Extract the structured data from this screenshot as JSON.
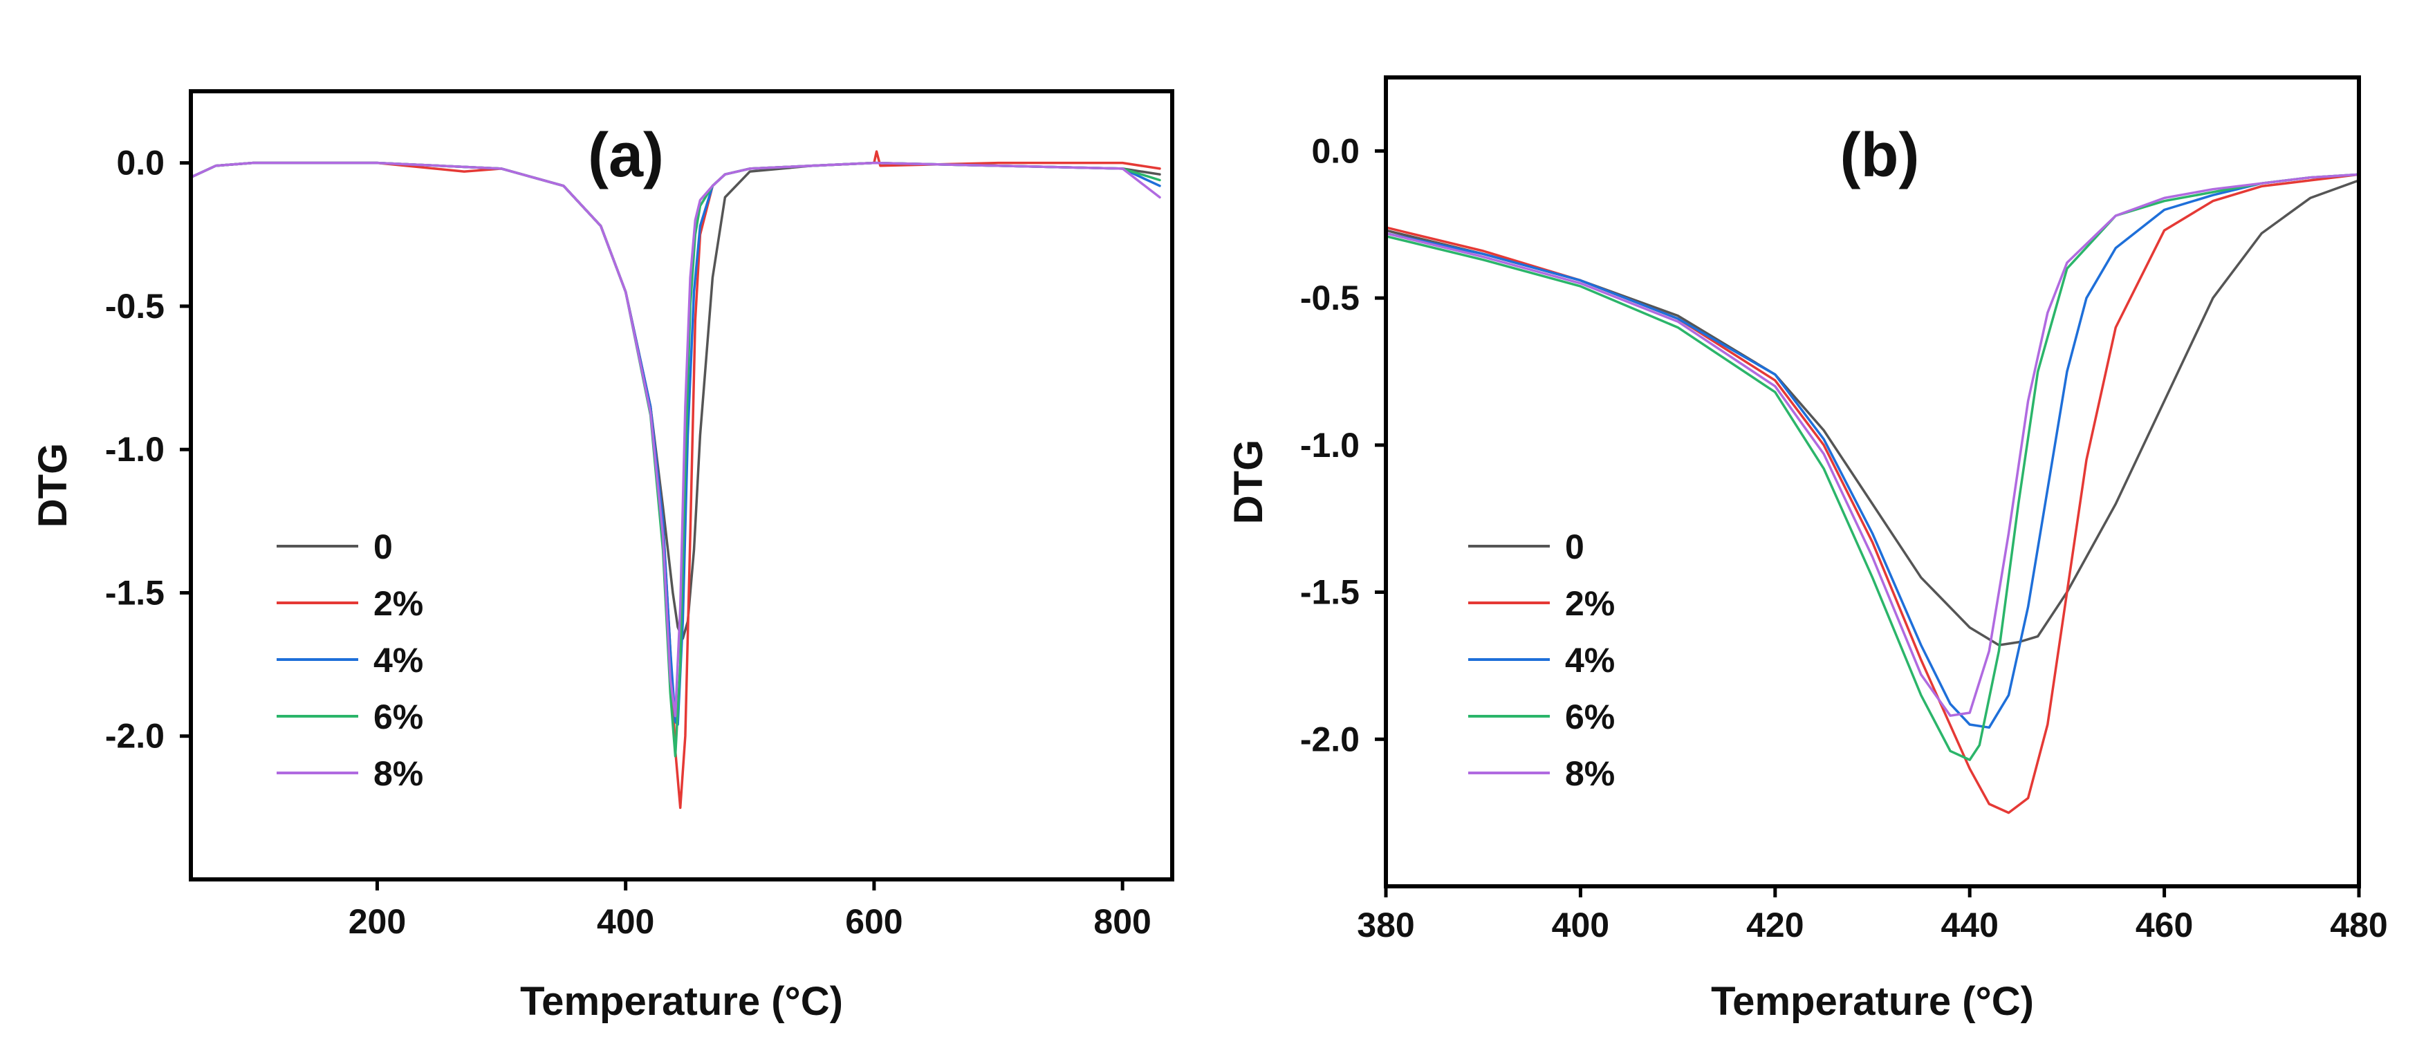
{
  "colors": {
    "s0": "#555555",
    "s2": "#e53935",
    "s4": "#1e6fd9",
    "s6": "#2bb56a",
    "s8": "#b06ae0"
  },
  "chart_data": [
    {
      "type": "line",
      "panel": "(a)",
      "xlabel": "Temperature (°C)",
      "ylabel": "DTG",
      "xlim": [
        50,
        840
      ],
      "ylim": [
        -2.5,
        0.25
      ],
      "xticks": [
        200,
        400,
        600,
        800
      ],
      "xtick_labels": [
        "200",
        "400",
        "600",
        "800"
      ],
      "yticks": [
        0.0,
        -0.5,
        -1.0,
        -1.5,
        -2.0
      ],
      "ytick_labels": [
        "0.0",
        "-0.5",
        "-1.0",
        "-1.5",
        "-2.0"
      ],
      "legend_position": "bottom-left",
      "series": [
        {
          "name": "0",
          "color_key": "s0",
          "x": [
            50,
            70,
            100,
            200,
            300,
            350,
            380,
            400,
            420,
            430,
            438,
            442,
            446,
            450,
            455,
            460,
            470,
            480,
            500,
            550,
            600,
            700,
            800,
            830
          ],
          "y": [
            -0.05,
            -0.01,
            0.0,
            0.0,
            -0.02,
            -0.08,
            -0.22,
            -0.45,
            -0.85,
            -1.2,
            -1.5,
            -1.62,
            -1.66,
            -1.6,
            -1.35,
            -0.95,
            -0.4,
            -0.12,
            -0.03,
            -0.01,
            0.0,
            -0.01,
            -0.02,
            -0.04
          ]
        },
        {
          "name": "2%",
          "color_key": "s2",
          "x": [
            50,
            70,
            100,
            200,
            270,
            300,
            350,
            380,
            400,
            420,
            430,
            436,
            440,
            444,
            448,
            452,
            456,
            460,
            470,
            480,
            500,
            550,
            600,
            602,
            605,
            700,
            800,
            830
          ],
          "y": [
            -0.05,
            -0.01,
            0.0,
            0.0,
            -0.03,
            -0.02,
            -0.08,
            -0.22,
            -0.45,
            -0.85,
            -1.25,
            -1.7,
            -2.05,
            -2.25,
            -2.0,
            -1.3,
            -0.55,
            -0.25,
            -0.08,
            -0.04,
            -0.02,
            -0.01,
            0.0,
            0.04,
            -0.01,
            0.0,
            0.0,
            -0.02
          ]
        },
        {
          "name": "4%",
          "color_key": "s4",
          "x": [
            50,
            70,
            100,
            200,
            300,
            350,
            380,
            400,
            420,
            430,
            436,
            440,
            442,
            446,
            450,
            455,
            460,
            470,
            480,
            500,
            600,
            700,
            800,
            830
          ],
          "y": [
            -0.05,
            -0.01,
            0.0,
            0.0,
            -0.02,
            -0.08,
            -0.22,
            -0.45,
            -0.85,
            -1.25,
            -1.7,
            -1.95,
            -1.96,
            -1.6,
            -0.95,
            -0.45,
            -0.22,
            -0.08,
            -0.04,
            -0.02,
            0.0,
            -0.01,
            -0.02,
            -0.08
          ]
        },
        {
          "name": "6%",
          "color_key": "s6",
          "x": [
            50,
            70,
            100,
            200,
            300,
            350,
            380,
            400,
            420,
            430,
            436,
            440,
            444,
            448,
            452,
            456,
            460,
            470,
            480,
            500,
            600,
            700,
            800,
            830
          ],
          "y": [
            -0.05,
            -0.01,
            0.0,
            0.0,
            -0.02,
            -0.08,
            -0.22,
            -0.45,
            -0.88,
            -1.35,
            -1.85,
            -2.07,
            -1.75,
            -1.05,
            -0.5,
            -0.25,
            -0.15,
            -0.08,
            -0.04,
            -0.02,
            0.0,
            -0.01,
            -0.02,
            -0.06
          ]
        },
        {
          "name": "8%",
          "color_key": "s8",
          "x": [
            50,
            70,
            100,
            200,
            300,
            350,
            380,
            400,
            420,
            430,
            436,
            440,
            444,
            448,
            452,
            456,
            460,
            470,
            480,
            500,
            600,
            700,
            800,
            830
          ],
          "y": [
            -0.05,
            -0.01,
            0.0,
            0.0,
            -0.02,
            -0.08,
            -0.22,
            -0.45,
            -0.87,
            -1.3,
            -1.8,
            -1.93,
            -1.55,
            -0.85,
            -0.4,
            -0.2,
            -0.13,
            -0.08,
            -0.04,
            -0.02,
            0.0,
            -0.01,
            -0.02,
            -0.12
          ]
        }
      ]
    },
    {
      "type": "line",
      "panel": "(b)",
      "xlabel": "Temperature (°C)",
      "ylabel": "DTG",
      "xlim": [
        380,
        480
      ],
      "ylim": [
        -2.5,
        0.25
      ],
      "xticks": [
        380,
        400,
        420,
        440,
        460,
        480
      ],
      "xtick_labels": [
        "380",
        "400",
        "420",
        "440",
        "460",
        "480"
      ],
      "yticks": [
        0.0,
        -0.5,
        -1.0,
        -1.5,
        -2.0
      ],
      "ytick_labels": [
        "0.0",
        "-0.5",
        "-1.0",
        "-1.5",
        "-2.0"
      ],
      "legend_position": "bottom-left",
      "series": [
        {
          "name": "0",
          "color_key": "s0",
          "x": [
            380,
            390,
            400,
            410,
            420,
            425,
            430,
            435,
            440,
            443,
            445,
            447,
            450,
            455,
            460,
            465,
            470,
            475,
            480
          ],
          "y": [
            -0.27,
            -0.35,
            -0.44,
            -0.56,
            -0.76,
            -0.95,
            -1.2,
            -1.45,
            -1.62,
            -1.68,
            -1.67,
            -1.65,
            -1.5,
            -1.2,
            -0.85,
            -0.5,
            -0.28,
            -0.16,
            -0.1
          ]
        },
        {
          "name": "2%",
          "color_key": "s2",
          "x": [
            380,
            390,
            400,
            410,
            420,
            425,
            430,
            435,
            440,
            442,
            444,
            446,
            448,
            450,
            452,
            455,
            460,
            465,
            470,
            475,
            480
          ],
          "y": [
            -0.26,
            -0.34,
            -0.44,
            -0.57,
            -0.78,
            -1.0,
            -1.33,
            -1.73,
            -2.1,
            -2.22,
            -2.25,
            -2.2,
            -1.95,
            -1.5,
            -1.05,
            -0.6,
            -0.27,
            -0.17,
            -0.12,
            -0.1,
            -0.08
          ]
        },
        {
          "name": "4%",
          "color_key": "s4",
          "x": [
            380,
            390,
            400,
            410,
            420,
            425,
            430,
            435,
            438,
            440,
            442,
            444,
            446,
            448,
            450,
            452,
            455,
            460,
            465,
            470,
            475,
            480
          ],
          "y": [
            -0.28,
            -0.35,
            -0.44,
            -0.57,
            -0.76,
            -0.98,
            -1.3,
            -1.68,
            -1.88,
            -1.95,
            -1.96,
            -1.85,
            -1.55,
            -1.15,
            -0.75,
            -0.5,
            -0.33,
            -0.2,
            -0.15,
            -0.11,
            -0.09,
            -0.08
          ]
        },
        {
          "name": "6%",
          "color_key": "s6",
          "x": [
            380,
            390,
            400,
            410,
            420,
            425,
            430,
            435,
            438,
            440,
            441,
            443,
            445,
            447,
            450,
            455,
            460,
            465,
            470,
            475,
            480
          ],
          "y": [
            -0.29,
            -0.37,
            -0.46,
            -0.6,
            -0.82,
            -1.08,
            -1.45,
            -1.85,
            -2.04,
            -2.07,
            -2.02,
            -1.7,
            -1.2,
            -0.75,
            -0.4,
            -0.22,
            -0.17,
            -0.14,
            -0.11,
            -0.09,
            -0.08
          ]
        },
        {
          "name": "8%",
          "color_key": "s8",
          "x": [
            380,
            390,
            400,
            410,
            420,
            425,
            430,
            435,
            438,
            440,
            442,
            444,
            446,
            448,
            450,
            455,
            460,
            465,
            470,
            475,
            480
          ],
          "y": [
            -0.28,
            -0.36,
            -0.45,
            -0.58,
            -0.8,
            -1.03,
            -1.38,
            -1.78,
            -1.92,
            -1.91,
            -1.7,
            -1.3,
            -0.85,
            -0.55,
            -0.38,
            -0.22,
            -0.16,
            -0.13,
            -0.11,
            -0.09,
            -0.08
          ]
        }
      ]
    }
  ]
}
